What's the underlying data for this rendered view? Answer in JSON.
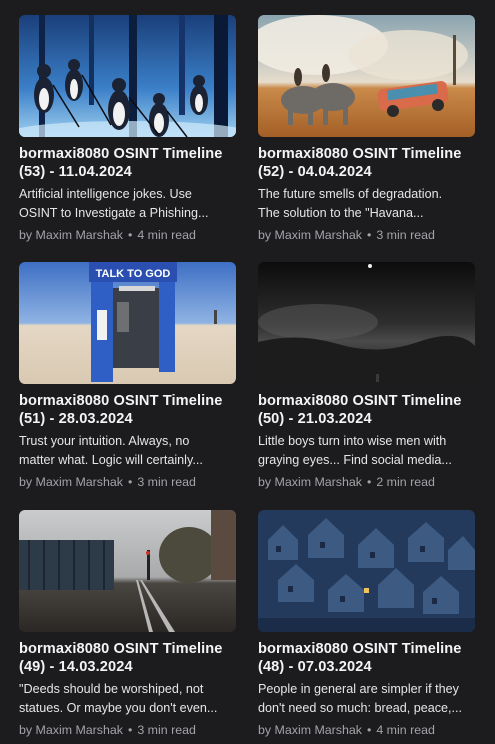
{
  "posts": [
    {
      "title_line1": "bormaxi8080 OSINT Timeline",
      "title_line2": "(53) - 11.04.2024",
      "desc_line1": "Artificial intelligence jokes. Use",
      "desc_line2": "OSINT to Investigate a Phishing...",
      "by": "by",
      "author": "Maxim Marshak",
      "separator": "•",
      "read_time": "4 min read"
    },
    {
      "title_line1": "bormaxi8080 OSINT Timeline",
      "title_line2": "(52) - 04.04.2024",
      "desc_line1": "The future smells of degradation.",
      "desc_line2": "The solution to the \"Havana...",
      "by": "by",
      "author": "Maxim Marshak",
      "separator": "•",
      "read_time": "3 min read"
    },
    {
      "title_line1": "bormaxi8080 OSINT Timeline",
      "title_line2": "(51) - 28.03.2024",
      "desc_line1": "Trust your intuition. Always, no",
      "desc_line2": "matter what. Logic will certainly...",
      "by": "by",
      "author": "Maxim Marshak",
      "separator": "•",
      "read_time": "3 min read",
      "booth_sign": "TALK TO GOD"
    },
    {
      "title_line1": "bormaxi8080 OSINT Timeline",
      "title_line2": "(50) - 21.03.2024",
      "desc_line1": "Little boys turn into wise men with",
      "desc_line2": "graying eyes... Find social media...",
      "by": "by",
      "author": "Maxim Marshak",
      "separator": "•",
      "read_time": "2 min read"
    },
    {
      "title_line1": "bormaxi8080 OSINT Timeline",
      "title_line2": "(49) - 14.03.2024",
      "desc_line1": "\"Deeds should be worshiped, not",
      "desc_line2": "statues. Or maybe you don't even...",
      "by": "by",
      "author": "Maxim Marshak",
      "separator": "•",
      "read_time": "3 min read"
    },
    {
      "title_line1": "bormaxi8080 OSINT Timeline",
      "title_line2": "(48) - 07.03.2024",
      "desc_line1": "People in general are simpler if they",
      "desc_line2": "don't need so much: bread, peace,...",
      "by": "by",
      "author": "Maxim Marshak",
      "separator": "•",
      "read_time": "4 min read"
    }
  ]
}
